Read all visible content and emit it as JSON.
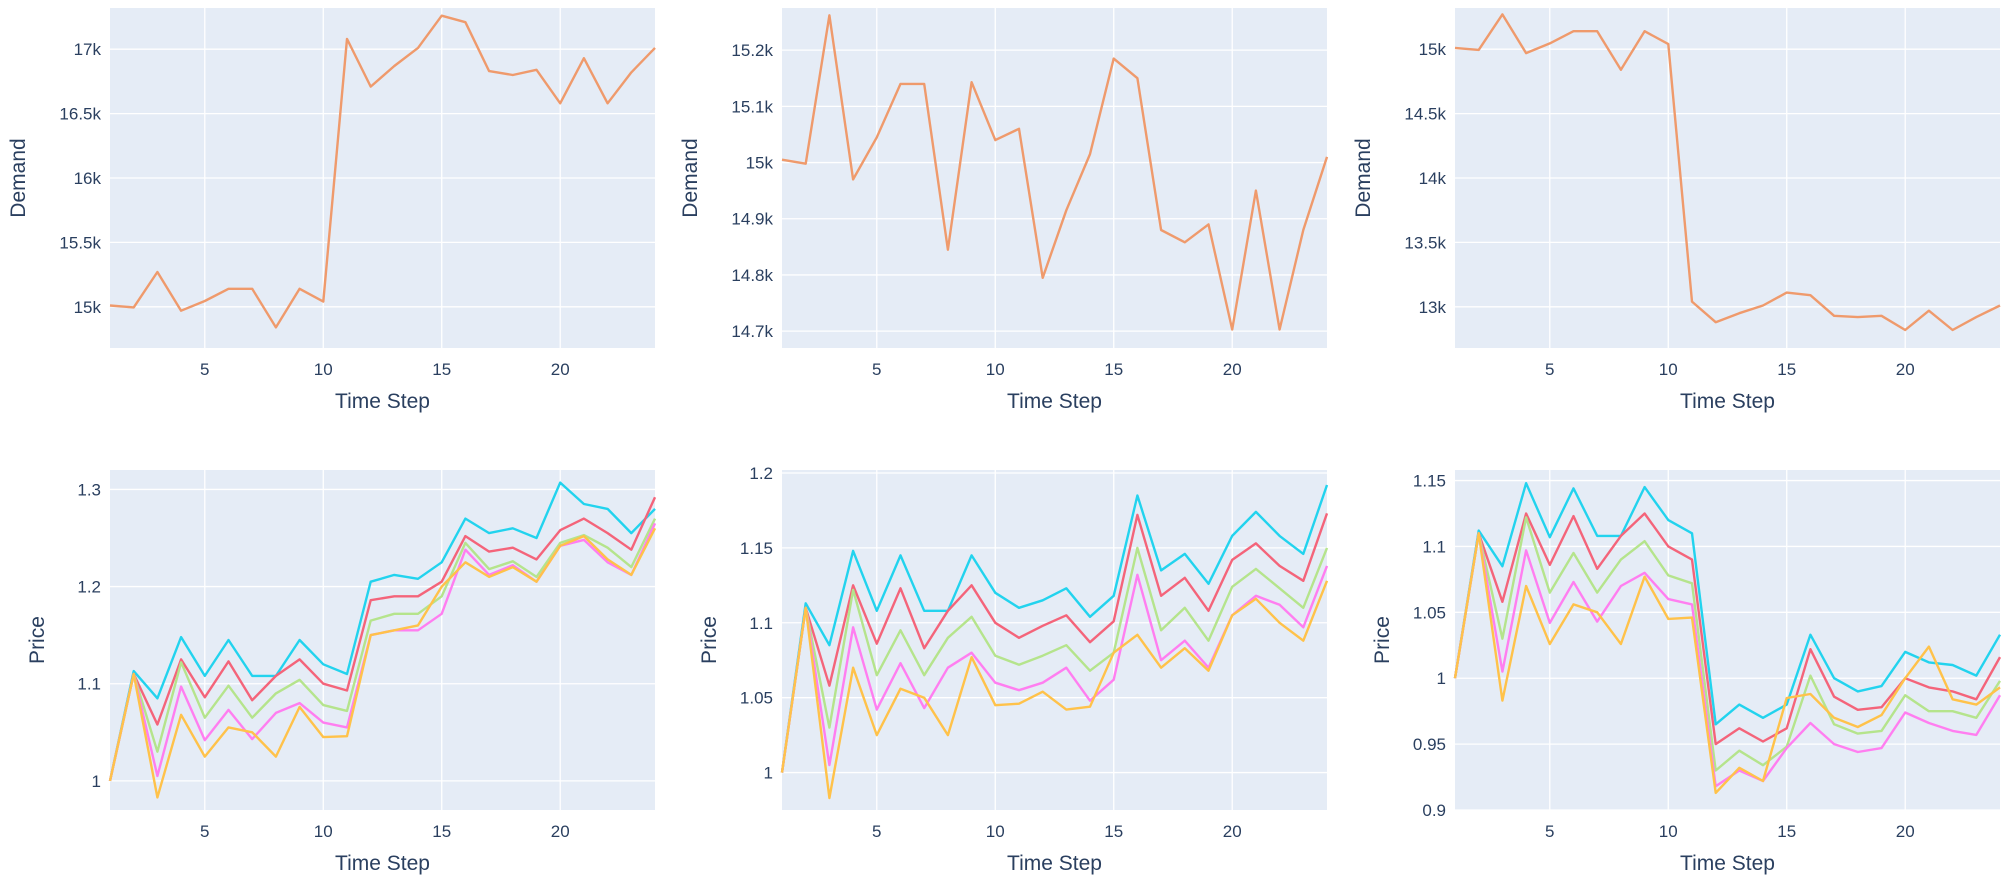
{
  "chart_data": [
    {
      "type": "line",
      "xlabel": "Time Step",
      "ylabel": "Demand",
      "xlim": [
        1,
        24
      ],
      "ylim": [
        14680,
        17320
      ],
      "x_ticks": [
        5,
        10,
        15,
        20
      ],
      "x_tick_labels": [
        "5",
        "10",
        "15",
        "20"
      ],
      "y_ticks": [
        15000,
        15500,
        16000,
        16500,
        17000
      ],
      "y_tick_labels": [
        "15k",
        "15.5k",
        "16k",
        "16.5k",
        "17k"
      ],
      "grid": true,
      "series": [
        {
          "color": "#ef9a6c",
          "values": [
            15010,
            14995,
            15270,
            14970,
            15045,
            15140,
            15140,
            14840,
            15140,
            15040,
            17080,
            16710,
            16870,
            17010,
            17260,
            17210,
            16830,
            16800,
            16840,
            16580,
            16930,
            16580,
            16820,
            17010
          ]
        }
      ]
    },
    {
      "type": "line",
      "xlabel": "Time Step",
      "ylabel": "Demand",
      "xlim": [
        1,
        24
      ],
      "ylim": [
        14670,
        15275
      ],
      "x_ticks": [
        5,
        10,
        15,
        20
      ],
      "x_tick_labels": [
        "5",
        "10",
        "15",
        "20"
      ],
      "y_ticks": [
        14700,
        14800,
        14900,
        15000,
        15100,
        15200
      ],
      "y_tick_labels": [
        "14.7k",
        "14.8k",
        "14.9k",
        "15k",
        "15.1k",
        "15.2k"
      ],
      "grid": true,
      "series": [
        {
          "color": "#ef9a6c",
          "values": [
            15005,
            14998,
            15262,
            14970,
            15045,
            15140,
            15140,
            14845,
            15143,
            15040,
            15060,
            14795,
            14915,
            15015,
            15185,
            15150,
            14880,
            14858,
            14890,
            14703,
            14950,
            14703,
            14880,
            15010
          ]
        }
      ]
    },
    {
      "type": "line",
      "xlabel": "Time Step",
      "ylabel": "Demand",
      "xlim": [
        1,
        24
      ],
      "ylim": [
        12680,
        15320
      ],
      "x_ticks": [
        5,
        10,
        15,
        20
      ],
      "x_tick_labels": [
        "5",
        "10",
        "15",
        "20"
      ],
      "y_ticks": [
        13000,
        13500,
        14000,
        14500,
        15000
      ],
      "y_tick_labels": [
        "13k",
        "13.5k",
        "14k",
        "14.5k",
        "15k"
      ],
      "grid": true,
      "series": [
        {
          "color": "#ef9a6c",
          "values": [
            15010,
            14995,
            15270,
            14970,
            15045,
            15140,
            15140,
            14840,
            15140,
            15040,
            13040,
            12880,
            12950,
            13010,
            13110,
            13090,
            12930,
            12920,
            12930,
            12820,
            12970,
            12820,
            12920,
            13010
          ]
        }
      ]
    },
    {
      "type": "line",
      "xlabel": "Time Step",
      "ylabel": "Price",
      "xlim": [
        1,
        24
      ],
      "ylim": [
        0.97,
        1.32
      ],
      "x_ticks": [
        5,
        10,
        15,
        20
      ],
      "x_tick_labels": [
        "5",
        "10",
        "15",
        "20"
      ],
      "y_ticks": [
        1,
        1.1,
        1.2,
        1.3
      ],
      "y_tick_labels": [
        "1",
        "1.1",
        "1.2",
        "1.3"
      ],
      "grid": true,
      "series": [
        {
          "color": "#22d3ee",
          "values": [
            1.0,
            1.113,
            1.085,
            1.148,
            1.108,
            1.145,
            1.108,
            1.108,
            1.145,
            1.12,
            1.11,
            1.205,
            1.212,
            1.208,
            1.225,
            1.27,
            1.255,
            1.26,
            1.25,
            1.307,
            1.285,
            1.28,
            1.255,
            1.28
          ]
        },
        {
          "color": "#f4647a",
          "values": [
            1.0,
            1.11,
            1.058,
            1.125,
            1.086,
            1.123,
            1.083,
            1.108,
            1.125,
            1.1,
            1.093,
            1.186,
            1.19,
            1.19,
            1.205,
            1.252,
            1.236,
            1.24,
            1.228,
            1.258,
            1.27,
            1.255,
            1.238,
            1.292
          ]
        },
        {
          "color": "#b5e48c",
          "values": [
            1.0,
            1.11,
            1.03,
            1.122,
            1.065,
            1.098,
            1.065,
            1.09,
            1.104,
            1.078,
            1.072,
            1.165,
            1.172,
            1.172,
            1.19,
            1.245,
            1.218,
            1.226,
            1.21,
            1.245,
            1.253,
            1.24,
            1.22,
            1.27
          ]
        },
        {
          "color": "#ff7ef0",
          "values": [
            1.0,
            1.11,
            1.005,
            1.097,
            1.042,
            1.073,
            1.043,
            1.07,
            1.08,
            1.06,
            1.055,
            1.15,
            1.155,
            1.155,
            1.172,
            1.238,
            1.212,
            1.222,
            1.205,
            1.242,
            1.248,
            1.225,
            1.212,
            1.265
          ]
        },
        {
          "color": "#ffc24a",
          "values": [
            1.0,
            1.11,
            0.983,
            1.068,
            1.025,
            1.055,
            1.05,
            1.025,
            1.076,
            1.045,
            1.046,
            1.15,
            1.155,
            1.16,
            1.2,
            1.225,
            1.21,
            1.22,
            1.205,
            1.242,
            1.252,
            1.228,
            1.212,
            1.26
          ]
        }
      ]
    },
    {
      "type": "line",
      "xlabel": "Time Step",
      "ylabel": "Price",
      "xlim": [
        1,
        24
      ],
      "ylim": [
        0.975,
        1.202
      ],
      "x_ticks": [
        5,
        10,
        15,
        20
      ],
      "x_tick_labels": [
        "5",
        "10",
        "15",
        "20"
      ],
      "y_ticks": [
        1,
        1.05,
        1.1,
        1.15,
        1.2
      ],
      "y_tick_labels": [
        "1",
        "1.05",
        "1.1",
        "1.15",
        "1.2"
      ],
      "grid": true,
      "series": [
        {
          "color": "#22d3ee",
          "values": [
            1.0,
            1.113,
            1.085,
            1.148,
            1.108,
            1.145,
            1.108,
            1.108,
            1.145,
            1.12,
            1.11,
            1.115,
            1.123,
            1.104,
            1.118,
            1.185,
            1.135,
            1.146,
            1.126,
            1.158,
            1.174,
            1.158,
            1.146,
            1.192
          ]
        },
        {
          "color": "#f4647a",
          "values": [
            1.0,
            1.11,
            1.058,
            1.125,
            1.086,
            1.123,
            1.083,
            1.108,
            1.125,
            1.1,
            1.09,
            1.098,
            1.105,
            1.087,
            1.101,
            1.172,
            1.118,
            1.13,
            1.108,
            1.142,
            1.153,
            1.138,
            1.128,
            1.173
          ]
        },
        {
          "color": "#b5e48c",
          "values": [
            1.0,
            1.11,
            1.03,
            1.122,
            1.065,
            1.095,
            1.065,
            1.09,
            1.104,
            1.078,
            1.072,
            1.078,
            1.085,
            1.068,
            1.08,
            1.15,
            1.095,
            1.11,
            1.088,
            1.124,
            1.136,
            1.123,
            1.11,
            1.15
          ]
        },
        {
          "color": "#ff7ef0",
          "values": [
            1.0,
            1.11,
            1.005,
            1.097,
            1.042,
            1.073,
            1.043,
            1.07,
            1.08,
            1.06,
            1.055,
            1.06,
            1.07,
            1.048,
            1.062,
            1.132,
            1.075,
            1.088,
            1.07,
            1.105,
            1.118,
            1.112,
            1.097,
            1.138
          ]
        },
        {
          "color": "#ffc24a",
          "values": [
            1.0,
            1.11,
            0.983,
            1.07,
            1.025,
            1.056,
            1.05,
            1.025,
            1.077,
            1.045,
            1.046,
            1.054,
            1.042,
            1.044,
            1.08,
            1.092,
            1.07,
            1.083,
            1.068,
            1.105,
            1.116,
            1.1,
            1.088,
            1.128
          ]
        }
      ]
    },
    {
      "type": "line",
      "xlabel": "Time Step",
      "ylabel": "Price",
      "xlim": [
        1,
        24
      ],
      "ylim": [
        0.9,
        1.158
      ],
      "x_ticks": [
        5,
        10,
        15,
        20
      ],
      "x_tick_labels": [
        "5",
        "10",
        "15",
        "20"
      ],
      "y_ticks": [
        0.9,
        0.95,
        1,
        1.05,
        1.1,
        1.15
      ],
      "y_tick_labels": [
        "0.9",
        "0.95",
        "1",
        "1.05",
        "1.1",
        "1.15"
      ],
      "grid": true,
      "series": [
        {
          "color": "#22d3ee",
          "values": [
            1.0,
            1.112,
            1.085,
            1.148,
            1.107,
            1.144,
            1.108,
            1.108,
            1.145,
            1.12,
            1.11,
            0.965,
            0.98,
            0.97,
            0.98,
            1.033,
            1.0,
            0.99,
            0.994,
            1.02,
            1.012,
            1.01,
            1.002,
            1.033
          ]
        },
        {
          "color": "#f4647a",
          "values": [
            1.0,
            1.11,
            1.058,
            1.125,
            1.086,
            1.123,
            1.083,
            1.108,
            1.125,
            1.1,
            1.09,
            0.95,
            0.962,
            0.952,
            0.962,
            1.022,
            0.986,
            0.976,
            0.978,
            1.0,
            0.993,
            0.99,
            0.984,
            1.016
          ]
        },
        {
          "color": "#b5e48c",
          "values": [
            1.0,
            1.11,
            1.03,
            1.122,
            1.065,
            1.095,
            1.065,
            1.09,
            1.104,
            1.078,
            1.072,
            0.93,
            0.945,
            0.934,
            0.948,
            1.002,
            0.965,
            0.958,
            0.96,
            0.987,
            0.975,
            0.975,
            0.97,
            0.998
          ]
        },
        {
          "color": "#ff7ef0",
          "values": [
            1.0,
            1.11,
            1.005,
            1.097,
            1.042,
            1.073,
            1.043,
            1.07,
            1.08,
            1.06,
            1.056,
            0.918,
            0.93,
            0.922,
            0.947,
            0.966,
            0.95,
            0.944,
            0.947,
            0.974,
            0.966,
            0.96,
            0.957,
            0.987
          ]
        },
        {
          "color": "#ffc24a",
          "values": [
            1.0,
            1.11,
            0.983,
            1.07,
            1.026,
            1.056,
            1.05,
            1.026,
            1.077,
            1.045,
            1.046,
            0.913,
            0.932,
            0.922,
            0.985,
            0.988,
            0.97,
            0.963,
            0.972,
            1.0,
            1.024,
            0.984,
            0.98,
            0.993
          ]
        }
      ]
    }
  ]
}
